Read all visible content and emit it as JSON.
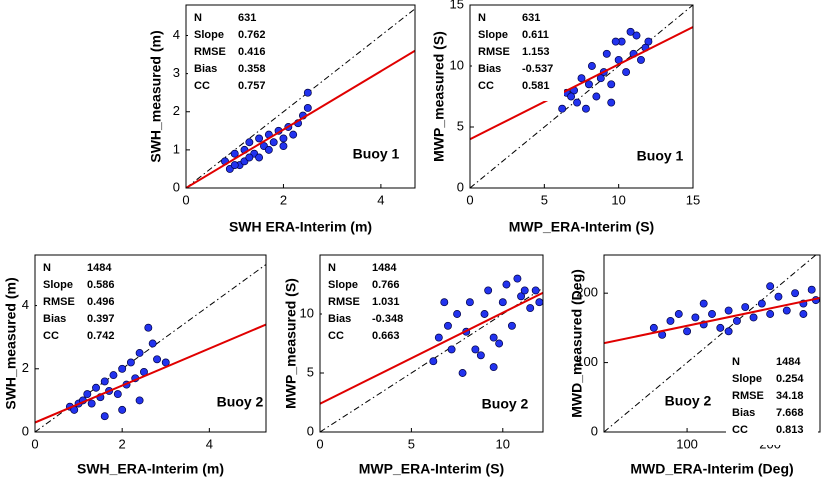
{
  "chart_data": [
    {
      "type": "scatter",
      "x_label": "SWH  ERA-Interim (m)",
      "y_label": "SWH_measured (m)",
      "annotation": "Buoy  1",
      "xlim": [
        0,
        4.7
      ],
      "ylim": [
        0,
        4.8
      ],
      "xticks": [
        0,
        2,
        4
      ],
      "yticks": [
        0,
        1,
        2,
        3,
        4
      ],
      "color": "#2233ee",
      "stats": [
        {
          "label": "N",
          "value": 631
        },
        {
          "label": "Slope",
          "value": 0.762
        },
        {
          "label": "RMSE",
          "value": 0.416
        },
        {
          "label": "Bias",
          "value": 0.358
        },
        {
          "label": "CC",
          "value": 0.757
        }
      ],
      "x": [
        0.8,
        0.9,
        1.0,
        1.1,
        1.2,
        1.2,
        1.3,
        1.4,
        1.5,
        1.5,
        1.6,
        1.7,
        1.8,
        1.9,
        2.0,
        2.1,
        2.2,
        2.3,
        2.4,
        2.5,
        2.5,
        1.0,
        1.3,
        1.7,
        2.0
      ],
      "values": [
        0.7,
        0.5,
        0.9,
        0.6,
        1.0,
        0.7,
        1.2,
        0.9,
        1.3,
        0.8,
        1.1,
        1.4,
        1.2,
        1.5,
        1.3,
        1.6,
        1.4,
        1.7,
        1.9,
        2.5,
        2.1,
        0.6,
        0.8,
        1.0,
        1.1
      ],
      "fit_line": {
        "x": [
          0,
          4.7
        ],
        "values": [
          0,
          3.6
        ],
        "color": "#e00000"
      },
      "identity_line": {
        "x": [
          0,
          4.7
        ],
        "values": [
          0,
          4.7
        ],
        "color": "#000000"
      }
    },
    {
      "type": "scatter",
      "x_label": "MWP_ERA-Interim (S)",
      "y_label": "MWP_measured (S)",
      "annotation": "Buoy  1",
      "xlim": [
        0,
        15
      ],
      "ylim": [
        0,
        15
      ],
      "xticks": [
        0,
        5,
        10,
        15
      ],
      "yticks": [
        0,
        5,
        10,
        15
      ],
      "color": "#2233ee",
      "stats": [
        {
          "label": "N",
          "value": 631
        },
        {
          "label": "Slope",
          "value": 0.611
        },
        {
          "label": "RMSE",
          "value": 1.153
        },
        {
          "label": "Bias",
          "value": -0.537
        },
        {
          "label": "CC",
          "value": 0.581
        }
      ],
      "x": [
        6.2,
        6.5,
        7,
        7.2,
        7.5,
        8,
        8.2,
        8.5,
        9,
        9.2,
        9.5,
        10,
        10.2,
        10.5,
        11,
        11.2,
        11.5,
        12,
        7.8,
        8.8,
        9.8,
        10.8,
        6.8,
        11.8,
        9.5
      ],
      "values": [
        6.5,
        7.8,
        8,
        7,
        9,
        8.5,
        10,
        7.5,
        9.5,
        11,
        8.5,
        10.5,
        12,
        9.5,
        11,
        12.5,
        10.5,
        12,
        6.5,
        9,
        12,
        12.8,
        7.5,
        11.5,
        7
      ],
      "fit_line": {
        "x": [
          0,
          15
        ],
        "values": [
          4,
          13.2
        ],
        "color": "#e00000"
      },
      "identity_line": {
        "x": [
          0,
          15
        ],
        "values": [
          0,
          15
        ],
        "color": "#000000"
      }
    },
    {
      "type": "scatter",
      "x_label": "SWH_ERA-Interim (m)",
      "y_label": "SWH_measured (m)",
      "annotation": "Buoy  2",
      "xlim": [
        0,
        5.3
      ],
      "ylim": [
        0,
        5.6
      ],
      "xticks": [
        0,
        2,
        4
      ],
      "yticks": [
        0,
        2,
        4
      ],
      "color": "#2233ee",
      "stats": [
        {
          "label": "N",
          "value": 1484
        },
        {
          "label": "Slope",
          "value": 0.586
        },
        {
          "label": "RMSE",
          "value": 0.496
        },
        {
          "label": "Bias",
          "value": 0.397
        },
        {
          "label": "CC",
          "value": 0.742
        }
      ],
      "x": [
        0.8,
        0.9,
        1.0,
        1.1,
        1.2,
        1.3,
        1.4,
        1.5,
        1.6,
        1.7,
        1.8,
        1.9,
        2.0,
        2.1,
        2.2,
        2.3,
        2.4,
        2.5,
        2.6,
        2.8,
        3.0,
        1.6,
        2.0,
        2.4,
        2.7
      ],
      "values": [
        0.8,
        0.7,
        0.9,
        1.0,
        1.2,
        0.9,
        1.4,
        1.1,
        1.6,
        1.3,
        1.8,
        1.2,
        2.0,
        1.5,
        2.2,
        1.7,
        2.5,
        1.9,
        3.3,
        2.3,
        2.2,
        0.5,
        0.7,
        1.0,
        2.8
      ],
      "fit_line": {
        "x": [
          0,
          5.3
        ],
        "values": [
          0.3,
          3.4
        ],
        "color": "#e00000"
      },
      "identity_line": {
        "x": [
          0,
          5.3
        ],
        "values": [
          0,
          5.3
        ],
        "color": "#000000"
      }
    },
    {
      "type": "scatter",
      "x_label": "MWP_ERA-Interim (S)",
      "y_label": "MWP_measured (S)",
      "annotation": "Buoy  2",
      "xlim": [
        0,
        12.2
      ],
      "ylim": [
        0,
        15
      ],
      "xticks": [
        0,
        5,
        10
      ],
      "yticks": [
        0,
        5,
        10
      ],
      "color": "#2233ee",
      "stats": [
        {
          "label": "N",
          "value": 1484
        },
        {
          "label": "Slope",
          "value": 0.766
        },
        {
          "label": "RMSE",
          "value": 1.031
        },
        {
          "label": "Bias",
          "value": -0.348
        },
        {
          "label": "CC",
          "value": 0.663
        }
      ],
      "x": [
        6.2,
        6.5,
        7,
        7.2,
        7.5,
        8,
        8.2,
        8.5,
        9,
        9.2,
        9.5,
        10,
        10.2,
        10.5,
        11,
        11.2,
        11.5,
        12,
        7.8,
        8.8,
        9.8,
        10.8,
        6.8,
        11.8,
        9.5
      ],
      "values": [
        6,
        8,
        9,
        7,
        10,
        8.5,
        11,
        7,
        10,
        12,
        8,
        11,
        12.5,
        9,
        11.5,
        12,
        10.5,
        11,
        5,
        6.5,
        7.5,
        13,
        11,
        12,
        5.5
      ],
      "fit_line": {
        "x": [
          0,
          12.2
        ],
        "values": [
          2.4,
          11.8
        ],
        "color": "#e00000"
      },
      "identity_line": {
        "x": [
          0,
          12.2
        ],
        "values": [
          0,
          12.2
        ],
        "color": "#000000"
      }
    },
    {
      "type": "scatter",
      "x_label": "MWD_ERA-Interim (Deg)",
      "y_label": "MWD_measured (Deg)",
      "annotation": "Buoy  2",
      "xlim": [
        0,
        260
      ],
      "ylim": [
        0,
        255
      ],
      "xticks": [
        100,
        200
      ],
      "yticks": [
        0,
        100,
        200
      ],
      "color": "#2233ee",
      "stats": [
        {
          "label": "N",
          "value": 1484
        },
        {
          "label": "Slope",
          "value": 0.254
        },
        {
          "label": "RMSE",
          "value": 34.18
        },
        {
          "label": "Bias",
          "value": 7.668
        },
        {
          "label": "CC",
          "value": 0.813
        }
      ],
      "x": [
        60,
        70,
        80,
        100,
        110,
        120,
        130,
        140,
        150,
        160,
        170,
        180,
        190,
        200,
        210,
        220,
        230,
        240,
        250,
        255,
        90,
        150,
        200,
        240,
        120
      ],
      "values": [
        150,
        140,
        160,
        145,
        165,
        155,
        170,
        150,
        175,
        160,
        180,
        165,
        185,
        170,
        195,
        175,
        200,
        185,
        205,
        190,
        170,
        145,
        210,
        170,
        185
      ],
      "fit_line": {
        "x": [
          0,
          260
        ],
        "values": [
          128,
          193
        ],
        "color": "#e00000"
      },
      "identity_line": {
        "x": [
          0,
          255
        ],
        "values": [
          0,
          255
        ],
        "color": "#000000"
      }
    }
  ]
}
